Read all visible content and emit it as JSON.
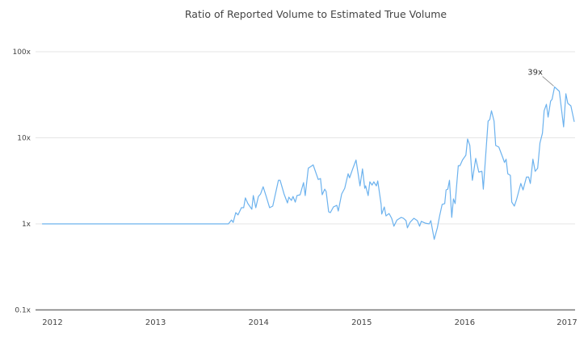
{
  "chart_data": {
    "type": "line",
    "title": "Ratio of Reported Volume to Estimated True Volume",
    "xlabel": "",
    "ylabel": "",
    "y_scale": "log",
    "ylim": [
      0.1,
      100
    ],
    "xlim": [
      "2011-11-25",
      "2017-01-24"
    ],
    "y_ticks": [
      {
        "value": 100,
        "label": "100x"
      },
      {
        "value": 10,
        "label": "10x"
      },
      {
        "value": 1,
        "label": "1x"
      },
      {
        "value": 0.1,
        "label": "0.1x"
      }
    ],
    "x_ticks": [
      {
        "value": "2012-01-01",
        "label": "2012"
      },
      {
        "value": "2013-01-01",
        "label": "2013"
      },
      {
        "value": "2014-01-01",
        "label": "2014"
      },
      {
        "value": "2015-01-01",
        "label": "2015"
      },
      {
        "value": "2016-01-01",
        "label": "2016"
      },
      {
        "value": "2017-01-01",
        "label": "2017"
      }
    ],
    "grid": "horizontal",
    "line_color": "#6cb2ee",
    "grid_color": "#e6e6e6",
    "axis_color": "#777777",
    "annotation": {
      "date": "2016-11-15",
      "value": 39,
      "label": "39x"
    },
    "series": [
      {
        "points": [
          [
            "2011-11-25",
            1
          ],
          [
            "2013-09-16",
            1
          ],
          [
            "2013-09-27",
            1.11
          ],
          [
            "2013-10-03",
            1.04
          ],
          [
            "2013-10-12",
            1.35
          ],
          [
            "2013-10-20",
            1.27
          ],
          [
            "2013-11-01",
            1.54
          ],
          [
            "2013-11-09",
            1.54
          ],
          [
            "2013-11-15",
            2.0
          ],
          [
            "2013-11-24",
            1.72
          ],
          [
            "2013-12-08",
            1.48
          ],
          [
            "2013-12-13",
            2.13
          ],
          [
            "2013-12-22",
            1.54
          ],
          [
            "2013-12-31",
            2.08
          ],
          [
            "2014-01-08",
            2.22
          ],
          [
            "2014-01-17",
            2.7
          ],
          [
            "2014-01-28",
            2.08
          ],
          [
            "2014-02-09",
            1.54
          ],
          [
            "2014-02-20",
            1.61
          ],
          [
            "2014-03-12",
            3.21
          ],
          [
            "2014-03-18",
            3.21
          ],
          [
            "2014-04-01",
            2.22
          ],
          [
            "2014-04-13",
            1.75
          ],
          [
            "2014-04-18",
            2.04
          ],
          [
            "2014-04-27",
            1.87
          ],
          [
            "2014-05-03",
            2.08
          ],
          [
            "2014-05-11",
            1.79
          ],
          [
            "2014-05-17",
            2.13
          ],
          [
            "2014-05-28",
            2.18
          ],
          [
            "2014-06-09",
            3.01
          ],
          [
            "2014-06-15",
            2.13
          ],
          [
            "2014-06-26",
            4.44
          ],
          [
            "2014-07-05",
            4.64
          ],
          [
            "2014-07-13",
            4.85
          ],
          [
            "2014-07-31",
            3.28
          ],
          [
            "2014-08-08",
            3.36
          ],
          [
            "2014-08-14",
            2.18
          ],
          [
            "2014-08-23",
            2.53
          ],
          [
            "2014-08-28",
            2.38
          ],
          [
            "2014-09-06",
            1.38
          ],
          [
            "2014-09-12",
            1.35
          ],
          [
            "2014-09-23",
            1.57
          ],
          [
            "2014-10-05",
            1.64
          ],
          [
            "2014-10-10",
            1.41
          ],
          [
            "2014-10-22",
            2.22
          ],
          [
            "2014-11-02",
            2.59
          ],
          [
            "2014-11-14",
            3.82
          ],
          [
            "2014-11-19",
            3.43
          ],
          [
            "2014-12-01",
            4.44
          ],
          [
            "2014-12-12",
            5.52
          ],
          [
            "2014-12-26",
            2.76
          ],
          [
            "2015-01-04",
            4.35
          ],
          [
            "2015-01-12",
            2.59
          ],
          [
            "2015-01-15",
            2.76
          ],
          [
            "2015-01-24",
            2.13
          ],
          [
            "2015-01-30",
            3.08
          ],
          [
            "2015-02-07",
            2.82
          ],
          [
            "2015-02-13",
            3.08
          ],
          [
            "2015-02-22",
            2.76
          ],
          [
            "2015-02-27",
            3.15
          ],
          [
            "2015-03-11",
            1.68
          ],
          [
            "2015-03-13",
            1.3
          ],
          [
            "2015-03-22",
            1.57
          ],
          [
            "2015-03-28",
            1.24
          ],
          [
            "2015-04-08",
            1.32
          ],
          [
            "2015-04-17",
            1.16
          ],
          [
            "2015-04-25",
            0.94
          ],
          [
            "2015-05-06",
            1.11
          ],
          [
            "2015-05-21",
            1.19
          ],
          [
            "2015-05-29",
            1.16
          ],
          [
            "2015-06-07",
            1.09
          ],
          [
            "2015-06-12",
            0.9
          ],
          [
            "2015-06-21",
            1.04
          ],
          [
            "2015-07-05",
            1.16
          ],
          [
            "2015-07-17",
            1.09
          ],
          [
            "2015-07-25",
            0.94
          ],
          [
            "2015-07-31",
            1.07
          ],
          [
            "2015-08-14",
            1.02
          ],
          [
            "2015-08-28",
            1.0
          ],
          [
            "2015-09-03",
            1.09
          ],
          [
            "2015-09-15",
            0.66
          ],
          [
            "2015-09-26",
            0.9
          ],
          [
            "2015-10-04",
            1.24
          ],
          [
            "2015-10-13",
            1.68
          ],
          [
            "2015-10-22",
            1.72
          ],
          [
            "2015-10-27",
            2.48
          ],
          [
            "2015-11-02",
            2.53
          ],
          [
            "2015-11-08",
            3.21
          ],
          [
            "2015-11-16",
            1.19
          ],
          [
            "2015-11-22",
            1.95
          ],
          [
            "2015-11-28",
            1.72
          ],
          [
            "2015-12-09",
            4.74
          ],
          [
            "2015-12-15",
            4.74
          ],
          [
            "2015-12-24",
            5.52
          ],
          [
            "2016-01-05",
            6.28
          ],
          [
            "2016-01-11",
            9.68
          ],
          [
            "2016-01-19",
            8.14
          ],
          [
            "2016-01-28",
            3.21
          ],
          [
            "2016-02-09",
            5.76
          ],
          [
            "2016-02-20",
            3.99
          ],
          [
            "2016-03-02",
            4.08
          ],
          [
            "2016-03-07",
            2.53
          ],
          [
            "2016-03-24",
            15.6
          ],
          [
            "2016-03-30",
            16.3
          ],
          [
            "2016-04-05",
            20.6
          ],
          [
            "2016-04-14",
            15.6
          ],
          [
            "2016-04-20",
            8.14
          ],
          [
            "2016-05-01",
            7.8
          ],
          [
            "2016-05-15",
            5.89
          ],
          [
            "2016-05-21",
            5.17
          ],
          [
            "2016-05-27",
            5.64
          ],
          [
            "2016-06-02",
            3.82
          ],
          [
            "2016-06-11",
            3.66
          ],
          [
            "2016-06-16",
            1.79
          ],
          [
            "2016-06-25",
            1.61
          ],
          [
            "2016-07-03",
            1.91
          ],
          [
            "2016-07-18",
            2.95
          ],
          [
            "2016-07-26",
            2.48
          ],
          [
            "2016-08-07",
            3.5
          ],
          [
            "2016-08-15",
            3.5
          ],
          [
            "2016-08-21",
            2.95
          ],
          [
            "2016-08-30",
            5.64
          ],
          [
            "2016-09-07",
            4.08
          ],
          [
            "2016-09-16",
            4.44
          ],
          [
            "2016-09-24",
            8.69
          ],
          [
            "2016-10-03",
            11.3
          ],
          [
            "2016-10-09",
            20.6
          ],
          [
            "2016-10-17",
            24.5
          ],
          [
            "2016-10-23",
            17.4
          ],
          [
            "2016-11-01",
            26.7
          ],
          [
            "2016-11-06",
            27.9
          ],
          [
            "2016-11-15",
            39
          ],
          [
            "2016-12-02",
            34.7
          ],
          [
            "2016-12-17",
            13.4
          ],
          [
            "2016-12-25",
            32.5
          ],
          [
            "2017-01-01",
            25.1
          ],
          [
            "2017-01-12",
            23.5
          ],
          [
            "2017-01-24",
            15.3
          ]
        ]
      }
    ]
  }
}
